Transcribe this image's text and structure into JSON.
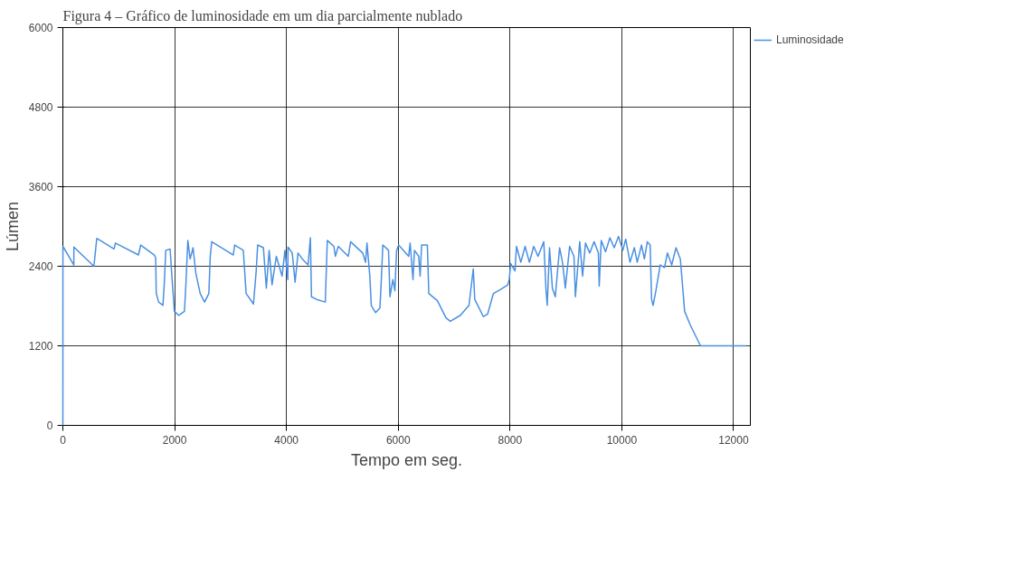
{
  "chart_data": {
    "type": "line",
    "title": "Figura 4 – Gráfico de luminosidade em um dia parcialmente nublado",
    "xlabel": "Tempo em seg.",
    "ylabel": "Lúmen",
    "xlim": [
      0,
      12300
    ],
    "ylim": [
      0,
      6000
    ],
    "xticks": [
      0,
      2000,
      4000,
      6000,
      8000,
      10000,
      12000
    ],
    "yticks": [
      0,
      1200,
      2400,
      3600,
      4800,
      6000
    ],
    "grid": true,
    "legend": "top right",
    "line_style": "solid",
    "series": [
      {
        "name": "Luminosidade",
        "color": "#4a90e2",
        "x": [
          0,
          1,
          196,
          197,
          555,
          607,
          915,
          941,
          1353,
          1393,
          1636,
          1660,
          1671,
          1713,
          1790,
          1816,
          1841,
          1919,
          1944,
          1995,
          2072,
          2175,
          2201,
          2236,
          2277,
          2329,
          2380,
          2457,
          2535,
          2612,
          2637,
          2663,
          3048,
          3074,
          3228,
          3279,
          3410,
          3459,
          3485,
          3588,
          3640,
          3691,
          3742,
          3819,
          3922,
          3973,
          4025,
          4027,
          4104,
          4155,
          4207,
          4284,
          4387,
          4428,
          4448,
          4540,
          4695,
          4731,
          4849,
          4875,
          4927,
          5107,
          5148,
          5364,
          5415,
          5441,
          5492,
          5518,
          5595,
          5672,
          5698,
          5724,
          5827,
          5852,
          5904,
          5940,
          5971,
          6007,
          6187,
          6213,
          6264,
          6290,
          6367,
          6392,
          6418,
          6521,
          6547,
          6701,
          6855,
          6932,
          7112,
          7266,
          7343,
          7369,
          7523,
          7600,
          7703,
          7832,
          7960,
          7986,
          8012,
          8089,
          8116,
          8193,
          8270,
          8347,
          8424,
          8501,
          8604,
          8645,
          8666,
          8707,
          8758,
          8810,
          8887,
          8939,
          8990,
          9067,
          9144,
          9170,
          9247,
          9298,
          9350,
          9427,
          9504,
          9581,
          9596,
          9632,
          9710,
          9787,
          9864,
          9941,
          10018,
          10070,
          10147,
          10224,
          10276,
          10353,
          10404,
          10456,
          10507,
          10533,
          10559,
          10610,
          10687,
          10764,
          10816,
          10893,
          10970,
          11047,
          11073,
          11124,
          11227,
          11408,
          12230
        ],
        "values": [
          0,
          2700,
          2420,
          2690,
          2400,
          2820,
          2660,
          2750,
          2570,
          2720,
          2570,
          2530,
          1990,
          1860,
          1810,
          2160,
          2640,
          2660,
          2330,
          1720,
          1660,
          1720,
          2120,
          2790,
          2510,
          2680,
          2290,
          1990,
          1860,
          1990,
          2550,
          2770,
          2570,
          2720,
          2640,
          1990,
          1830,
          2330,
          2720,
          2680,
          2070,
          2640,
          2120,
          2550,
          2250,
          2640,
          2200,
          2690,
          2600,
          2160,
          2600,
          2510,
          2420,
          2830,
          1940,
          1900,
          1860,
          2790,
          2700,
          2550,
          2700,
          2550,
          2770,
          2600,
          2460,
          2750,
          2250,
          1810,
          1700,
          1770,
          2200,
          2720,
          2640,
          1940,
          2200,
          2030,
          2640,
          2720,
          2550,
          2750,
          2200,
          2640,
          2550,
          2250,
          2720,
          2720,
          1990,
          1880,
          1620,
          1570,
          1660,
          1810,
          2360,
          1900,
          1640,
          1680,
          1990,
          2050,
          2120,
          2200,
          2440,
          2330,
          2700,
          2460,
          2700,
          2460,
          2700,
          2550,
          2770,
          2030,
          1810,
          2680,
          2070,
          1940,
          2680,
          2460,
          2070,
          2700,
          2550,
          1940,
          2770,
          2250,
          2750,
          2600,
          2770,
          2600,
          2100,
          2790,
          2620,
          2830,
          2680,
          2850,
          2640,
          2810,
          2460,
          2680,
          2460,
          2720,
          2510,
          2770,
          2720,
          1900,
          1810,
          2030,
          2420,
          2380,
          2600,
          2420,
          2680,
          2510,
          2250,
          1720,
          1510,
          1200,
          1200
        ]
      }
    ]
  }
}
